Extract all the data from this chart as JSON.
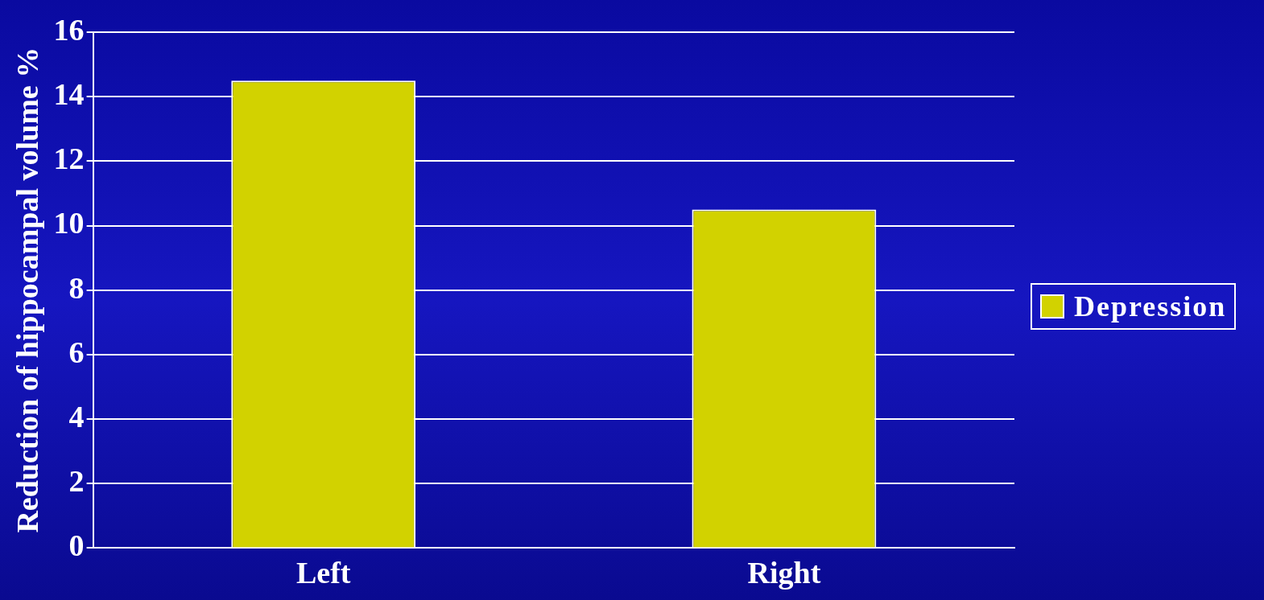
{
  "chart_data": {
    "type": "bar",
    "ylabel": "Reduction of hippocampal volume %",
    "categories": [
      "Left",
      "Right"
    ],
    "series": [
      {
        "name": "Depression",
        "color": "#d2d200",
        "values": [
          14.5,
          10.5
        ]
      }
    ],
    "ylim": [
      0,
      16
    ],
    "yticks": [
      0,
      2,
      4,
      6,
      8,
      10,
      12,
      14,
      16
    ],
    "grid": "y",
    "legend": "right"
  }
}
